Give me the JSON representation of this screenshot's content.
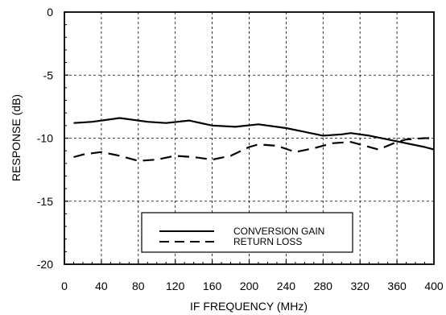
{
  "chart_data": {
    "type": "line",
    "xlabel": "IF FREQUENCY (MHz)",
    "ylabel": "RESPONSE (dB)",
    "xlim": [
      0,
      400
    ],
    "ylim": [
      -20,
      0
    ],
    "x_ticks": [
      0,
      40,
      80,
      120,
      160,
      200,
      240,
      280,
      320,
      360,
      400
    ],
    "y_ticks": [
      0,
      -5,
      -10,
      -15,
      -20
    ],
    "grid": "dashed",
    "legend_position": "bottom-center",
    "series": [
      {
        "name": "CONVERSION GAIN",
        "style": "solid",
        "x": [
          10,
          30,
          60,
          90,
          110,
          135,
          160,
          185,
          210,
          240,
          260,
          280,
          300,
          310,
          330,
          350,
          370,
          390,
          400
        ],
        "y": [
          -8.8,
          -8.7,
          -8.4,
          -8.7,
          -8.8,
          -8.6,
          -9.0,
          -9.1,
          -8.9,
          -9.2,
          -9.5,
          -9.8,
          -9.7,
          -9.6,
          -9.8,
          -10.1,
          -10.4,
          -10.7,
          -10.9
        ]
      },
      {
        "name": "RETURN LOSS",
        "style": "dashed",
        "x": [
          10,
          20,
          40,
          60,
          80,
          100,
          120,
          140,
          160,
          180,
          200,
          210,
          230,
          250,
          270,
          290,
          310,
          320,
          340,
          360,
          370,
          390,
          400
        ],
        "y": [
          -11.5,
          -11.3,
          -11.1,
          -11.4,
          -11.8,
          -11.7,
          -11.4,
          -11.5,
          -11.7,
          -11.4,
          -10.7,
          -10.5,
          -10.6,
          -11.1,
          -10.8,
          -10.4,
          -10.3,
          -10.5,
          -10.9,
          -10.3,
          -10.1,
          -10.0,
          -10.0
        ]
      }
    ]
  }
}
